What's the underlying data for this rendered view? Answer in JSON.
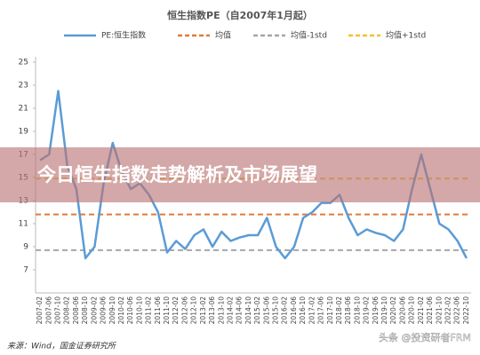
{
  "chart_data": {
    "type": "line",
    "title": "恒生指数PE（自2007年1月起）",
    "categories": [
      "2007-02",
      "2007-06",
      "2007-10",
      "2008-02",
      "2008-06",
      "2008-10",
      "2009-02",
      "2009-06",
      "2009-10",
      "2010-02",
      "2010-06",
      "2010-10",
      "2011-02",
      "2011-06",
      "2011-10",
      "2012-02",
      "2012-06",
      "2012-10",
      "2013-02",
      "2013-06",
      "2013-10",
      "2014-02",
      "2014-06",
      "2014-10",
      "2015-02",
      "2015-06",
      "2015-10",
      "2016-02",
      "2016-06",
      "2016-10",
      "2017-02",
      "2017-06",
      "2017-10",
      "2018-02",
      "2018-06",
      "2018-10",
      "2019-02",
      "2019-06",
      "2019-10",
      "2020-02",
      "2020-06",
      "2020-10",
      "2021-02",
      "2021-06",
      "2021-10",
      "2022-02",
      "2022-06",
      "2022-10"
    ],
    "series": [
      {
        "name": "PE:恒生指数",
        "color": "#5b9bd5",
        "values": [
          16.5,
          17,
          22.5,
          16,
          14,
          8,
          9,
          14.5,
          18,
          15.5,
          14,
          14.5,
          13.5,
          12,
          8.5,
          9.5,
          8.8,
          10,
          10.5,
          9,
          10.3,
          9.5,
          9.8,
          10,
          10,
          11.5,
          9,
          8,
          9,
          11.5,
          12,
          12.8,
          12.8,
          13.5,
          11.5,
          10,
          10.5,
          10.2,
          10,
          9.5,
          10.5,
          14,
          17,
          14,
          11,
          10.5,
          9.5,
          8
        ]
      }
    ],
    "reference_lines": [
      {
        "name": "均值",
        "color": "#e07b39",
        "value": 11.8
      },
      {
        "name": "均值-1std",
        "color": "#a6a6a6",
        "value": 8.7
      },
      {
        "name": "均值+1std",
        "color": "#f2c12e",
        "value": 14.9
      }
    ],
    "ylim": [
      5,
      25
    ],
    "yticks": [
      7,
      9,
      11,
      13,
      15,
      17,
      19,
      21,
      23,
      25
    ],
    "source": "来源：Wind，国金证券研究所"
  },
  "banner": "今日恒生指数走势解析及市场展望",
  "watermark": "头条 @投资研者FRM"
}
